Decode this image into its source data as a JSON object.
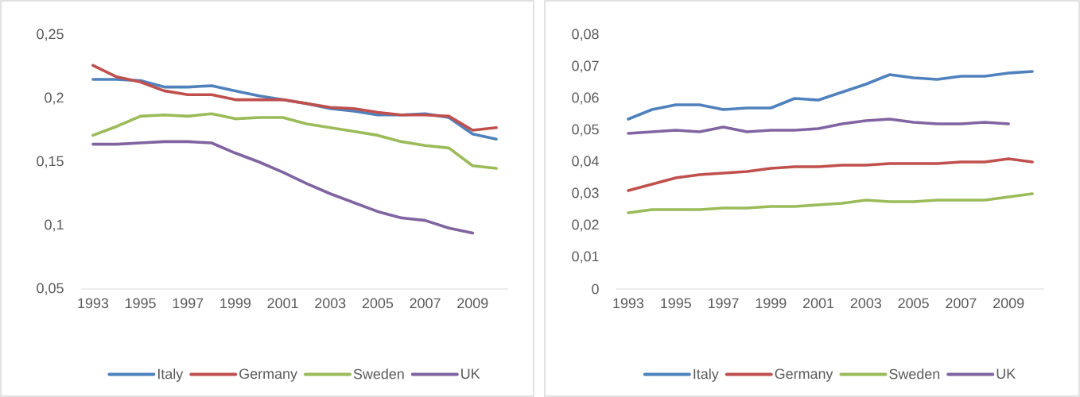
{
  "chart_data": [
    {
      "type": "line",
      "categories": [
        "1993",
        null,
        "1995",
        null,
        "1997",
        null,
        "1999",
        null,
        "2001",
        null,
        "2003",
        null,
        "2005",
        null,
        "2007",
        null,
        "2009",
        null
      ],
      "ylim": [
        0.05,
        0.25
      ],
      "yticks": [
        {
          "value": 0.05,
          "label": "0,05"
        },
        {
          "value": 0.1,
          "label": "0,1"
        },
        {
          "value": 0.15,
          "label": "0,15"
        },
        {
          "value": 0.2,
          "label": "0,2"
        },
        {
          "value": 0.25,
          "label": "0,25"
        }
      ],
      "grid": false,
      "legend": "bottom",
      "marker": "none",
      "line_style": "solid",
      "series": [
        {
          "name": "Italy",
          "color": "#4f81bd",
          "values": [
            0.215,
            0.215,
            0.214,
            0.209,
            0.209,
            0.21,
            0.206,
            0.202,
            0.199,
            0.196,
            0.192,
            0.19,
            0.187,
            0.187,
            0.188,
            0.185,
            0.172,
            0.168
          ]
        },
        {
          "name": "Germany",
          "color": "#c0504d",
          "values": [
            0.226,
            0.217,
            0.213,
            0.206,
            0.203,
            0.203,
            0.199,
            0.199,
            0.199,
            0.196,
            0.193,
            0.192,
            0.189,
            0.187,
            0.187,
            0.186,
            0.175,
            0.177
          ]
        },
        {
          "name": "Sweden",
          "color": "#9bbb59",
          "values": [
            0.171,
            0.178,
            0.186,
            0.187,
            0.186,
            0.188,
            0.184,
            0.185,
            0.185,
            0.18,
            0.177,
            0.174,
            0.171,
            0.166,
            0.163,
            0.161,
            0.147,
            0.145
          ]
        },
        {
          "name": "UK",
          "color": "#8064a2",
          "values": [
            0.164,
            0.164,
            0.165,
            0.166,
            0.166,
            0.165,
            0.157,
            0.15,
            0.142,
            0.133,
            0.125,
            0.118,
            0.111,
            0.106,
            0.104,
            0.098,
            0.094,
            null
          ]
        }
      ]
    },
    {
      "type": "line",
      "categories": [
        "1993",
        null,
        "1995",
        null,
        "1997",
        null,
        "1999",
        null,
        "2001",
        null,
        "2003",
        null,
        "2005",
        null,
        "2007",
        null,
        "2009",
        null
      ],
      "ylim": [
        0,
        0.08
      ],
      "yticks": [
        0,
        {
          "value": 0.01,
          "label": "0,01"
        },
        {
          "value": 0.02,
          "label": "0,02"
        },
        {
          "value": 0.03,
          "label": "0,03"
        },
        {
          "value": 0.04,
          "label": "0,04"
        },
        {
          "value": 0.05,
          "label": "0,05"
        },
        {
          "value": 0.06,
          "label": "0,06"
        },
        {
          "value": 0.07,
          "label": "0,07"
        },
        {
          "value": 0.08,
          "label": "0,08"
        }
      ],
      "grid": false,
      "legend": "bottom",
      "marker": "none",
      "line_style": "solid",
      "series": [
        {
          "name": "Italy",
          "color": "#4f81bd",
          "values": [
            0.0535,
            0.0565,
            0.058,
            0.058,
            0.0565,
            0.057,
            0.057,
            0.06,
            0.0595,
            0.062,
            0.0645,
            0.0675,
            0.0665,
            0.066,
            0.067,
            0.067,
            0.068,
            0.0685
          ]
        },
        {
          "name": "Germany",
          "color": "#c0504d",
          "values": [
            0.031,
            0.033,
            0.035,
            0.036,
            0.0365,
            0.037,
            0.038,
            0.0385,
            0.0385,
            0.039,
            0.039,
            0.0395,
            0.0395,
            0.0395,
            0.04,
            0.04,
            0.041,
            0.04
          ]
        },
        {
          "name": "Sweden",
          "color": "#9bbb59",
          "values": [
            0.024,
            0.025,
            0.025,
            0.025,
            0.0255,
            0.0255,
            0.026,
            0.026,
            0.0265,
            0.027,
            0.028,
            0.0275,
            0.0275,
            0.028,
            0.028,
            0.028,
            0.029,
            0.03
          ]
        },
        {
          "name": "UK",
          "color": "#8064a2",
          "values": [
            0.049,
            0.0495,
            0.05,
            0.0495,
            0.051,
            0.0495,
            0.05,
            0.05,
            0.0505,
            0.052,
            0.053,
            0.0535,
            0.0525,
            0.052,
            0.052,
            0.0525,
            0.052,
            null
          ]
        }
      ]
    }
  ]
}
